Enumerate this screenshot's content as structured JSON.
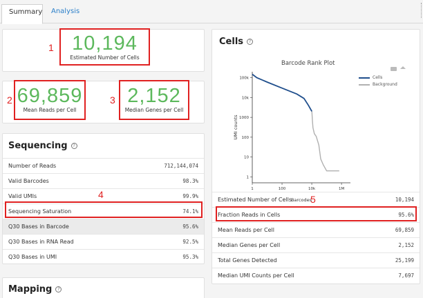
{
  "tabs": {
    "summary": "Summary",
    "analysis": "Analysis"
  },
  "metrics": {
    "cells": {
      "value": "10,194",
      "label": "Estimated Number of Cells",
      "annotation": "1"
    },
    "mean_reads": {
      "value": "69,859",
      "label": "Mean Reads per Cell",
      "annotation": "2"
    },
    "median_genes": {
      "value": "2,152",
      "label": "Median Genes per Cell",
      "annotation": "3"
    }
  },
  "sequencing": {
    "title": "Sequencing",
    "annotation": "4",
    "rows": [
      {
        "label": "Number of Reads",
        "value": "712,144,074"
      },
      {
        "label": "Valid Barcodes",
        "value": "98.3%"
      },
      {
        "label": "Valid UMIs",
        "value": "99.9%"
      },
      {
        "label": "Sequencing Saturation",
        "value": "74.1%"
      },
      {
        "label": "Q30 Bases in Barcode",
        "value": "95.6%"
      },
      {
        "label": "Q30 Bases in RNA Read",
        "value": "92.5%"
      },
      {
        "label": "Q30 Bases in UMI",
        "value": "95.3%"
      }
    ]
  },
  "mapping": {
    "title": "Mapping"
  },
  "cells_panel": {
    "title": "Cells",
    "annotation": "5",
    "rows": [
      {
        "label": "Estimated Number of Cells",
        "value": "10,194"
      },
      {
        "label": "Fraction Reads in Cells",
        "value": "95.6%"
      },
      {
        "label": "Mean Reads per Cell",
        "value": "69,859"
      },
      {
        "label": "Median Genes per Cell",
        "value": "2,152"
      },
      {
        "label": "Total Genes Detected",
        "value": "25,199"
      },
      {
        "label": "Median UMI Counts per Cell",
        "value": "7,697"
      }
    ]
  },
  "icons": {
    "help": "?",
    "camera": "camera-icon",
    "home": "home-icon"
  },
  "chart_data": {
    "type": "line",
    "title": "Barcode Rank Plot",
    "xlabel": "Barcodes",
    "ylabel": "UMI counts",
    "x_scale": "log",
    "y_scale": "log",
    "x_ticks": [
      "1",
      "100",
      "10k",
      "1M"
    ],
    "y_ticks": [
      "1",
      "10",
      "100",
      "1000",
      "10k",
      "100k"
    ],
    "legend": [
      "Cells",
      "Background"
    ],
    "legend_position": "top-right",
    "colors": {
      "Cells": "#1f4e8c",
      "Background": "#b0b0b0"
    },
    "series": [
      {
        "name": "Cells",
        "x": [
          1,
          2,
          10,
          100,
          1000,
          3000,
          6000,
          10194
        ],
        "y": [
          150000,
          100000,
          60000,
          30000,
          15000,
          9000,
          4000,
          2000
        ]
      },
      {
        "name": "Background",
        "x": [
          10194,
          11000,
          12000,
          15000,
          20000,
          30000,
          40000,
          60000,
          100000,
          300000,
          700000
        ],
        "y": [
          2000,
          700,
          300,
          150,
          110,
          40,
          8,
          4,
          2,
          2,
          2
        ]
      }
    ]
  }
}
